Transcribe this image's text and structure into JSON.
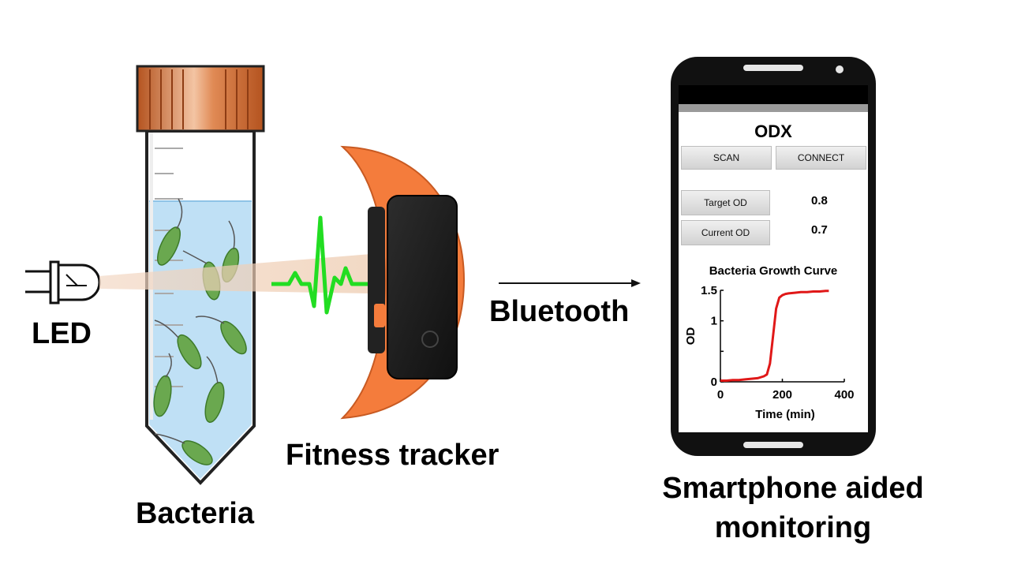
{
  "labels": {
    "led": "LED",
    "bacteria": "Bacteria",
    "fitness_tracker": "Fitness tracker",
    "bluetooth": "Bluetooth",
    "smartphone_line1": "Smartphone aided",
    "smartphone_line2": "monitoring"
  },
  "app": {
    "title": "ODX",
    "scan_label": "SCAN",
    "connect_label": "CONNECT",
    "target_od_label": "Target OD",
    "target_od_value": "0.8",
    "current_od_label": "Current OD",
    "current_od_value": "0.7"
  },
  "colors": {
    "tube_cap": "#d9743f",
    "tracker_band": "#f47c3c",
    "bacteria": "#6aa84f",
    "liquid": "#bfe0f5",
    "heartbeat": "#22dd22",
    "curve": "#e01818"
  },
  "chart_data": {
    "type": "line",
    "title": "Bacteria Growth Curve",
    "xlabel": "Time (min)",
    "ylabel": "OD",
    "xlim": [
      0,
      400
    ],
    "ylim": [
      0,
      1.5
    ],
    "xticks": [
      "0",
      "200",
      "400"
    ],
    "yticks": [
      "0",
      "0.5",
      "1",
      "1.5"
    ],
    "series": [
      {
        "x": [
          0,
          20,
          40,
          60,
          80,
          100,
          120,
          140,
          150,
          160,
          170,
          180,
          190,
          200,
          210,
          220,
          240,
          260,
          280,
          300,
          320,
          340,
          350
        ],
        "y": [
          0.02,
          0.02,
          0.03,
          0.03,
          0.04,
          0.05,
          0.06,
          0.09,
          0.12,
          0.3,
          0.75,
          1.2,
          1.38,
          1.42,
          1.44,
          1.45,
          1.46,
          1.47,
          1.47,
          1.48,
          1.48,
          1.49,
          1.49
        ]
      }
    ]
  }
}
